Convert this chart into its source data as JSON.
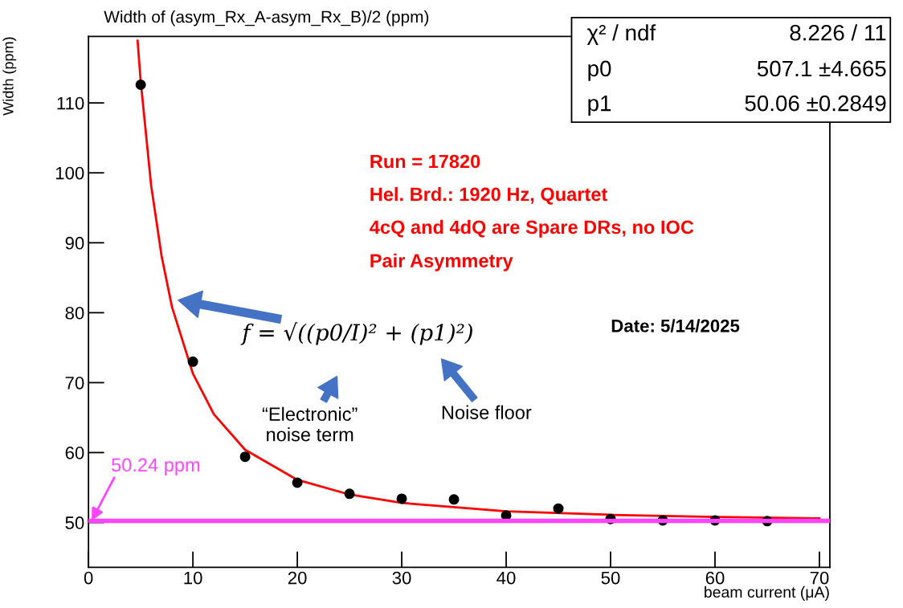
{
  "chart_data": {
    "type": "scatter",
    "title": "Width of (asym_Rx_A-asym_Rx_B)/2 (ppm)",
    "xlabel": "beam current (μA)",
    "ylabel": "Width (ppm)",
    "xlim": [
      0,
      71
    ],
    "ylim": [
      43.6,
      119.5
    ],
    "xticks": [
      0,
      10,
      20,
      30,
      40,
      50,
      60,
      70
    ],
    "yticks": [
      50,
      60,
      70,
      80,
      90,
      100,
      110
    ],
    "series": [
      {
        "color": "#000000",
        "marker": "circle",
        "x": [
          5,
          10,
          15,
          20,
          25,
          30,
          35,
          40,
          45,
          50,
          55,
          60,
          65
        ],
        "values": [
          112.6,
          73.0,
          59.4,
          55.7,
          54.1,
          53.4,
          53.3,
          51.0,
          52.0,
          50.5,
          50.3,
          50.3,
          50.2
        ]
      },
      {
        "type": "line",
        "color": "#ff0000",
        "marker": "none",
        "line_style": "solid",
        "x": [
          4.7,
          5,
          6,
          7,
          8,
          10,
          12,
          15,
          20,
          25,
          30,
          40,
          50,
          60,
          70
        ],
        "values": [
          118.9,
          113.1,
          98.2,
          88.1,
          80.8,
          71.3,
          65.5,
          60.4,
          56.1,
          54.0,
          52.8,
          51.6,
          51.1,
          50.8,
          50.6
        ]
      }
    ],
    "ref_lines": [
      {
        "axis": "y",
        "value": 50.24,
        "label": "50.24 ppm",
        "color": "#ff44ff",
        "line_style": "solid"
      }
    ],
    "annotations": [
      "f = √((p0/I)² + (p1)²)",
      "“Electronic”\nnoise term",
      "Noise floor",
      "Run = 17820",
      "Hel. Brd.: 1920 Hz, Quartet",
      "4cQ and 4dQ are Spare DRs, no IOC",
      "Pair Asymmetry",
      "Date: 5/14/2025",
      "χ² / ndf",
      "8.226 / 11",
      "p0",
      "507.1 ±4.665",
      "p1",
      "50.06 ±0.2849"
    ],
    "grid": false,
    "legend": false
  }
}
